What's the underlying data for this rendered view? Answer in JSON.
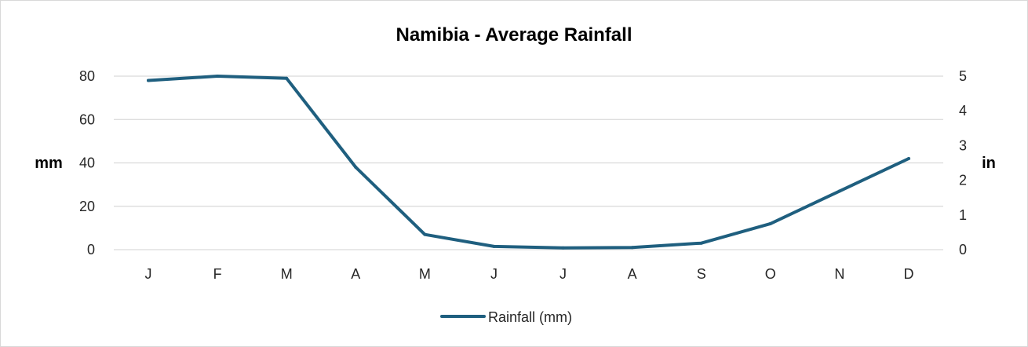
{
  "chart_data": {
    "type": "line",
    "title": "Namibia - Average Rainfall",
    "categories": [
      "J",
      "F",
      "M",
      "A",
      "M",
      "J",
      "J",
      "A",
      "S",
      "O",
      "N",
      "D"
    ],
    "series": [
      {
        "name": "Rainfall (mm)",
        "values": [
          78,
          80,
          79,
          38,
          7,
          1.5,
          0.8,
          1,
          3,
          12,
          27,
          42
        ],
        "color": "#1f5f7f"
      }
    ],
    "ylabel": "mm",
    "ylabel_right": "in",
    "ylim": [
      0,
      80
    ],
    "yticks": [
      "0",
      "20",
      "40",
      "60",
      "80"
    ],
    "ylim_right": [
      0,
      5
    ],
    "yticks_right": [
      "0",
      "1",
      "2",
      "3",
      "4",
      "5"
    ],
    "grid": true,
    "legend_position": "bottom",
    "gridline_color": "#d9d9d9"
  }
}
